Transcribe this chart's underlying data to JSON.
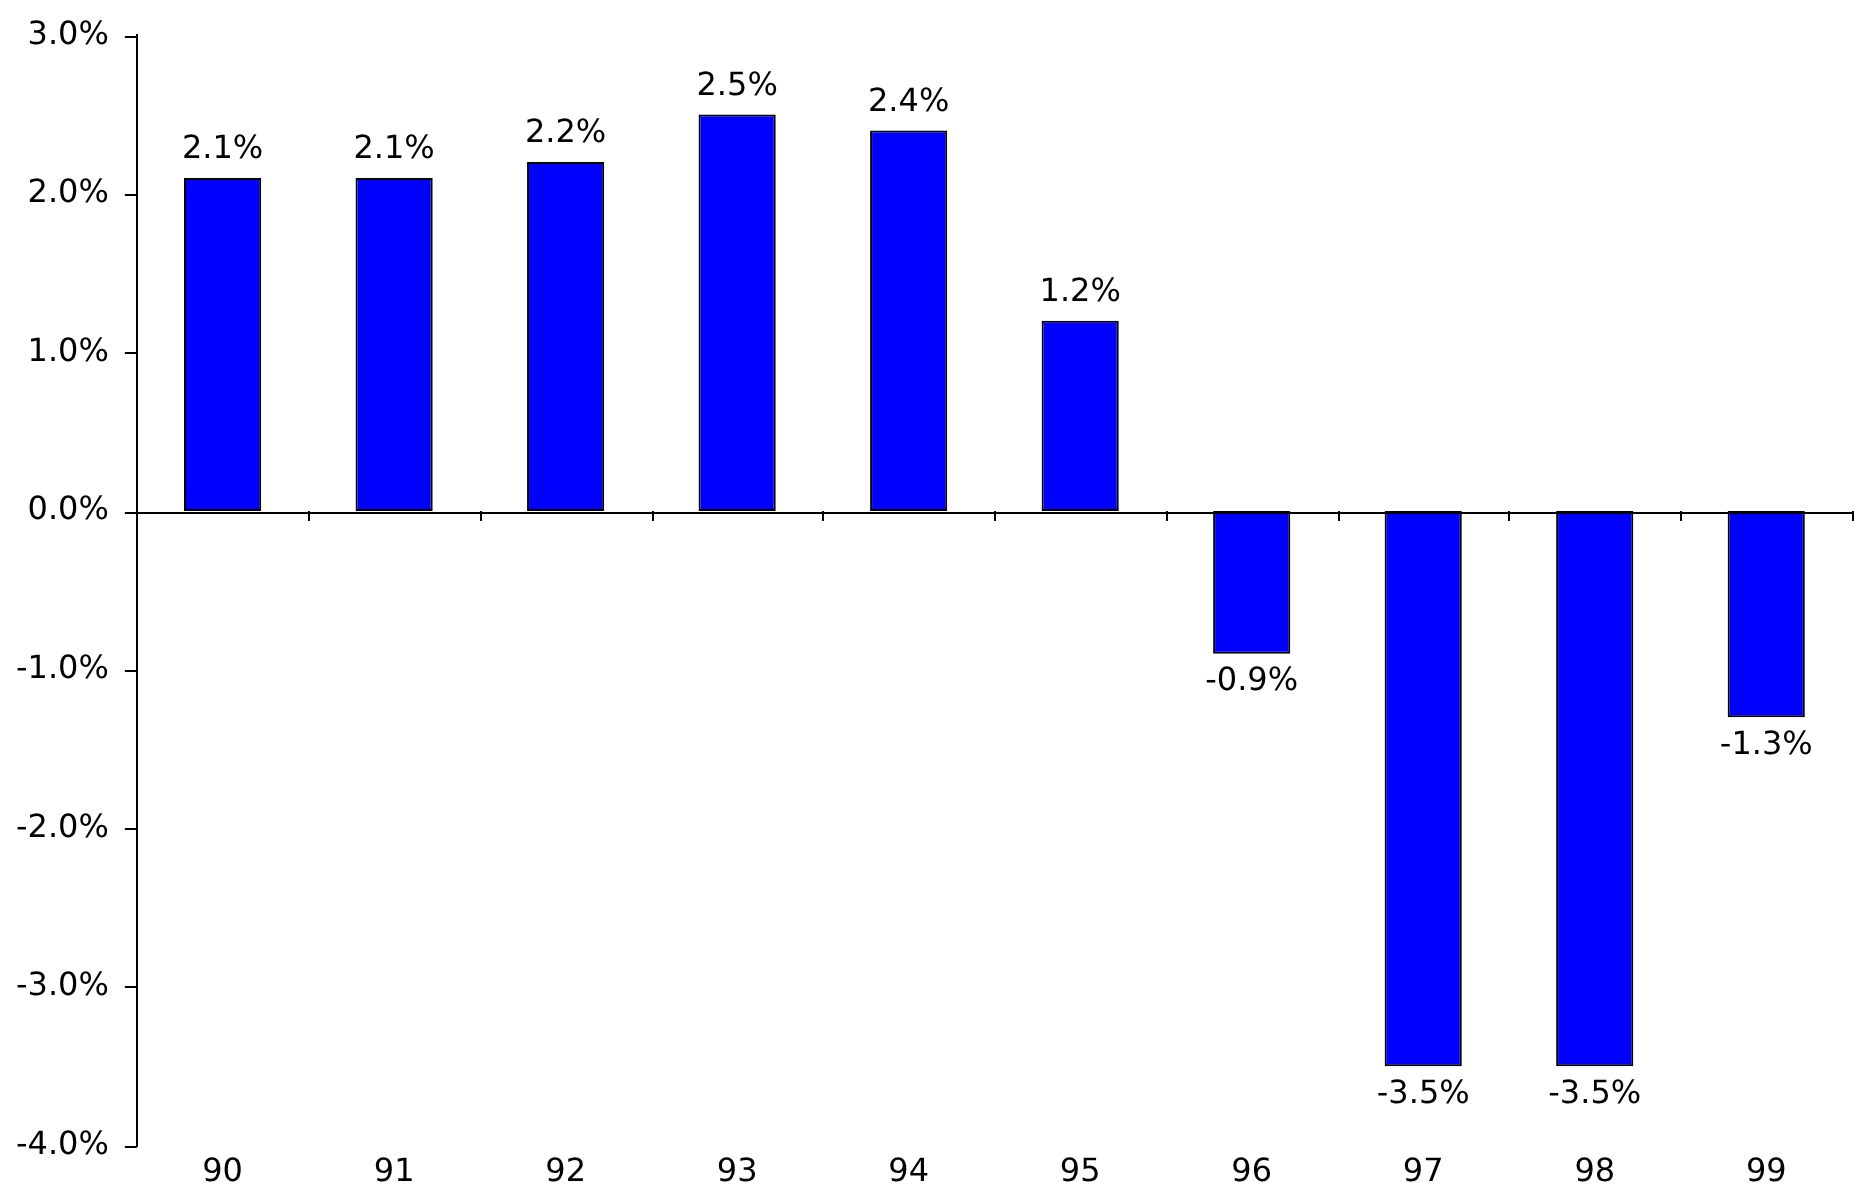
{
  "chart_data": {
    "type": "bar",
    "categories": [
      "90",
      "91",
      "92",
      "93",
      "94",
      "95",
      "96",
      "97",
      "98",
      "99"
    ],
    "values": [
      2.1,
      2.1,
      2.2,
      2.5,
      2.4,
      1.2,
      -0.9,
      -3.5,
      -3.5,
      -1.3
    ],
    "value_labels": [
      "2.1%",
      "2.1%",
      "2.2%",
      "2.5%",
      "2.4%",
      "1.2%",
      "-0.9%",
      "-3.5%",
      "-3.5%",
      "-1.3%"
    ],
    "color": "#0000ff",
    "ylim": [
      -4,
      3
    ],
    "yticks": [
      {
        "value": -4,
        "label": "-4.0%"
      },
      {
        "value": -3,
        "label": "-3.0%"
      },
      {
        "value": -2,
        "label": "-2.0%"
      },
      {
        "value": -1,
        "label": "-1.0%"
      },
      {
        "value": 0,
        "label": "0.0%"
      },
      {
        "value": 1,
        "label": "1.0%"
      },
      {
        "value": 2,
        "label": "2.0%"
      },
      {
        "value": 3,
        "label": "3.0%"
      }
    ],
    "ref_lines": [
      {
        "axis": "y",
        "value": 0,
        "color": "#000000"
      }
    ],
    "grid": false,
    "legend": false
  }
}
